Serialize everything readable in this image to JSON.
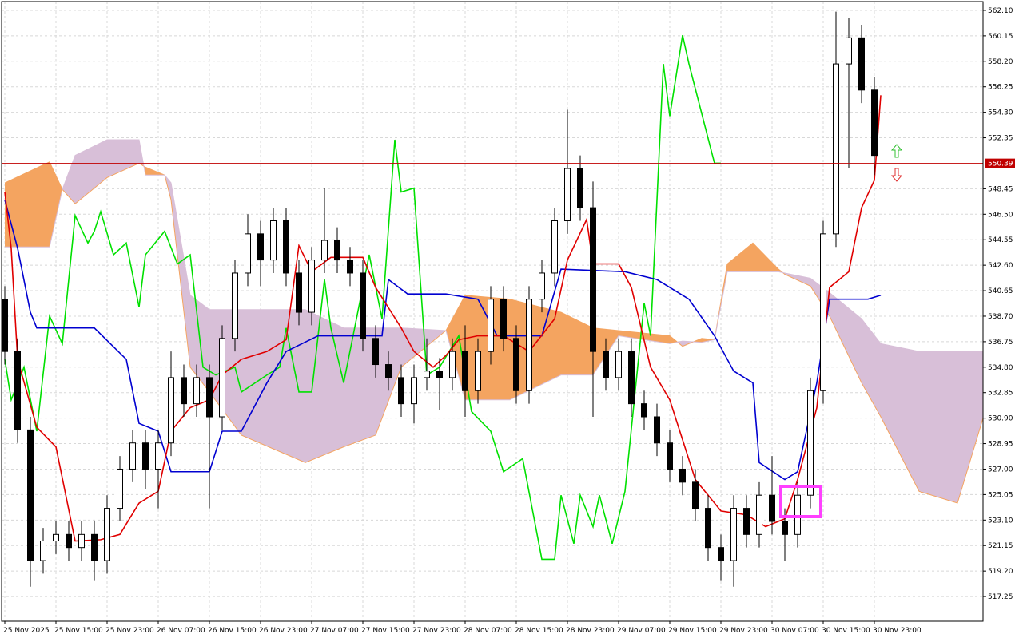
{
  "chart_data": {
    "type": "candlestick",
    "x": [
      0,
      2,
      4,
      6,
      8,
      10,
      12,
      14,
      16,
      18,
      20,
      22,
      24,
      26,
      28,
      30,
      32,
      34,
      36,
      38,
      40,
      42,
      44,
      46,
      48,
      50,
      52,
      54,
      56,
      58,
      60,
      62,
      64,
      66,
      68,
      70,
      72,
      74,
      76,
      78,
      80,
      82,
      84,
      86,
      88,
      90,
      92,
      94,
      96,
      98,
      100,
      102,
      104,
      106,
      108,
      110,
      112,
      114,
      116,
      118,
      120,
      122,
      124,
      126,
      128,
      130,
      132,
      134,
      136
    ],
    "open": [
      540,
      536,
      530,
      520,
      521.5,
      522,
      521,
      522,
      520,
      524,
      527,
      529,
      527,
      529,
      534,
      532,
      534,
      531,
      537,
      542,
      545,
      543,
      546,
      542,
      539,
      543,
      544.5,
      543,
      542,
      537,
      535,
      534,
      532,
      534,
      534.5,
      534,
      536,
      533,
      536,
      540,
      537,
      533,
      540,
      542,
      546,
      550,
      547,
      536,
      534,
      536,
      532,
      531,
      529,
      527,
      526,
      524,
      521,
      520,
      524,
      522,
      525,
      523,
      522,
      525,
      533,
      545,
      558,
      560,
      556
    ],
    "high": [
      541,
      537,
      531,
      522.5,
      523,
      523,
      523,
      523,
      525,
      528,
      530,
      530,
      530,
      536,
      535,
      535,
      535,
      538,
      543,
      546.5,
      546,
      547,
      547,
      543,
      544,
      548.5,
      545.5,
      544,
      543,
      538,
      536,
      535,
      535,
      537,
      535.5,
      537,
      538,
      537,
      541,
      541,
      538,
      541,
      543,
      547,
      554.5,
      551,
      549,
      537,
      537,
      537,
      533,
      532,
      530,
      528,
      527,
      525,
      522,
      525,
      525,
      526,
      528,
      524,
      526,
      534,
      546,
      562,
      561.5,
      561,
      557
    ],
    "low": [
      535,
      529,
      518,
      519,
      520.5,
      520,
      520,
      518.5,
      519,
      523,
      526,
      525.5,
      524,
      528,
      531,
      531,
      524,
      530,
      536,
      541,
      541,
      542,
      541,
      538,
      538,
      542,
      542,
      541,
      536,
      534,
      533,
      531,
      530.5,
      533,
      531.5,
      533,
      531,
      532,
      535,
      536,
      532,
      532,
      539,
      541,
      545,
      546,
      531,
      533,
      533,
      531,
      530,
      528,
      526,
      525,
      523,
      520,
      518.5,
      518,
      521,
      521,
      522,
      520,
      521,
      524,
      532,
      544,
      550,
      555,
      549.5
    ],
    "close": [
      536,
      530,
      520,
      521.5,
      522,
      521,
      522,
      520,
      524,
      527,
      529,
      527,
      529,
      534,
      532,
      534,
      531,
      537,
      542,
      545,
      543,
      546,
      542,
      539,
      543,
      544.5,
      543,
      542,
      537,
      535,
      534,
      532,
      534,
      534.5,
      534,
      536,
      533,
      536,
      540,
      537,
      533,
      540,
      542,
      546,
      550,
      547,
      536,
      534,
      536,
      532,
      531,
      529,
      527,
      526,
      524,
      521,
      520,
      524,
      522,
      525,
      523,
      522,
      525,
      533,
      545,
      558,
      560,
      556,
      551
    ],
    "up_color": "#ffffff",
    "down_color": "#000000",
    "xlim": [
      -0.5,
      153
    ],
    "ylim": [
      515.36,
      562.77
    ],
    "grid": true,
    "xticks": [
      {
        "value": 0,
        "label": "25 Nov 2025"
      },
      {
        "value": 8,
        "label": "25 Nov 15:00"
      },
      {
        "value": 16,
        "label": "25 Nov 23:00"
      },
      {
        "value": 24,
        "label": "26 Nov 07:00"
      },
      {
        "value": 32,
        "label": "26 Nov 15:00"
      },
      {
        "value": 40,
        "label": "26 Nov 23:00"
      },
      {
        "value": 48,
        "label": "27 Nov 07:00"
      },
      {
        "value": 56,
        "label": "27 Nov 15:00"
      },
      {
        "value": 64,
        "label": "27 Nov 23:00"
      },
      {
        "value": 72,
        "label": "28 Nov 07:00"
      },
      {
        "value": 80,
        "label": "28 Nov 15:00"
      },
      {
        "value": 88,
        "label": "28 Nov 23:00"
      },
      {
        "value": 96,
        "label": "29 Nov 07:00"
      },
      {
        "value": 104,
        "label": "29 Nov 15:00"
      },
      {
        "value": 112,
        "label": "29 Nov 23:00"
      },
      {
        "value": 120,
        "label": "30 Nov 07:00"
      },
      {
        "value": 128,
        "label": "30 Nov 15:00"
      },
      {
        "value": 136,
        "label": "30 Nov 23:00"
      }
    ],
    "yticks": [
      {
        "value": 562.1,
        "label": "562.10"
      },
      560.15,
      {
        "value": 558.2,
        "label": "558.20"
      },
      556.25,
      {
        "value": 554.3,
        "label": "554.30"
      },
      552.35,
      548.45,
      {
        "value": 546.5,
        "label": "546.50"
      },
      544.55,
      {
        "value": 542.6,
        "label": "542.60"
      },
      540.65,
      {
        "value": 538.7,
        "label": "538.70"
      },
      536.75,
      {
        "value": 534.8,
        "label": "534.80"
      },
      532.85,
      {
        "value": 530.9,
        "label": "530.90"
      },
      528.95,
      {
        "value": 527,
        "label": "527.00"
      },
      525.05,
      {
        "value": 523.1,
        "label": "523.10"
      },
      521.15,
      {
        "value": 519.2,
        "label": "519.20"
      },
      517.25
    ],
    "price_line": 550.39,
    "price_color": "#c00000",
    "cloud": {
      "x": [
        0,
        7,
        9,
        11,
        16,
        21,
        22,
        25,
        26,
        29,
        32,
        37,
        47,
        53,
        58,
        62,
        69,
        72,
        79,
        87,
        92,
        96,
        104,
        106,
        109,
        111,
        113,
        117,
        121,
        122,
        126,
        129,
        134,
        137,
        143,
        149,
        153
      ],
      "span_a": [
        548.9,
        550.5,
        548.4,
        547.3,
        549.3,
        550.4,
        550.1,
        549.5,
        547.6,
        534.8,
        532.9,
        529.6,
        527.5,
        528.7,
        529.6,
        534.8,
        537.6,
        540.3,
        540,
        539,
        537.8,
        537.6,
        537.2,
        536.4,
        537,
        536.9,
        542.7,
        544.3,
        542.3,
        541.9,
        541,
        538.7,
        533.6,
        531,
        525.3,
        524.4,
        530.9
      ],
      "span_b": [
        544,
        544,
        548.4,
        551,
        552.2,
        552.2,
        549.5,
        549.5,
        548.9,
        540.3,
        539.2,
        539.2,
        539.2,
        537.8,
        537.8,
        537.8,
        537.6,
        532.3,
        532.3,
        534.2,
        534.2,
        537.2,
        536.6,
        536.8,
        536.7,
        536.9,
        542.1,
        542.1,
        542.1,
        542,
        541.6,
        540.5,
        538.5,
        536.6,
        536,
        536,
        536
      ],
      "up_color": "#f4a460",
      "down_color": "#d8bfd8"
    },
    "lines": [
      {
        "color": "#00e000",
        "x": [
          0,
          1,
          3,
          5,
          7,
          9,
          11,
          13,
          14,
          15,
          17,
          19,
          21,
          22,
          25,
          27,
          29,
          31,
          33,
          36,
          37,
          41,
          43,
          44,
          46,
          48,
          50,
          51,
          53,
          55,
          57,
          59,
          61,
          62,
          64,
          66,
          68,
          71,
          73,
          76,
          78,
          81,
          84,
          86,
          87,
          89,
          90,
          92,
          93,
          95,
          97,
          100,
          101,
          103,
          104,
          106,
          107,
          111,
          112
        ],
        "values": [
          535.4,
          532.3,
          534.8,
          529.9,
          538.7,
          536.6,
          546.4,
          544.3,
          545.2,
          546.7,
          543.4,
          544.3,
          539.4,
          543.4,
          545.2,
          542.7,
          543.4,
          534.8,
          534.2,
          534.8,
          532.9,
          534.2,
          534.8,
          537.8,
          532.9,
          532.9,
          541.5,
          537.8,
          533.6,
          538.5,
          543.4,
          538.5,
          552.2,
          548.2,
          548.5,
          534.2,
          534.8,
          537.2,
          531.4,
          529.9,
          526.8,
          527.8,
          520.1,
          520.1,
          525,
          521.3,
          525,
          522.6,
          525,
          521.3,
          525.3,
          539.7,
          537.2,
          558,
          554,
          560.2,
          558,
          550.4,
          550.4
        ]
      },
      {
        "color": "#0000d0",
        "x": [
          0,
          2,
          4,
          5,
          14,
          19,
          21,
          24,
          26,
          32,
          34,
          37,
          41,
          44,
          49,
          54,
          59,
          60,
          63,
          69,
          74,
          77,
          84,
          87,
          97,
          102,
          107,
          111,
          114,
          117,
          118,
          122,
          124,
          127,
          129,
          135,
          137
        ],
        "values": [
          547.6,
          543.9,
          539,
          537.8,
          537.8,
          535.4,
          530.5,
          529.9,
          526.8,
          526.8,
          529.9,
          529.9,
          533.6,
          536,
          537.2,
          537.2,
          537.2,
          541.5,
          540.4,
          540.4,
          540,
          537.2,
          537.2,
          542.3,
          542.1,
          541.5,
          540,
          537.2,
          534.5,
          533.6,
          527.5,
          526.2,
          526.8,
          533.6,
          540,
          540,
          540.3
        ]
      },
      {
        "color": "#e00000",
        "x": [
          0,
          1,
          2,
          5,
          8,
          11,
          15,
          18,
          21,
          24,
          26,
          29,
          32,
          34,
          37,
          41,
          44,
          46,
          48,
          51,
          56,
          58,
          62,
          64,
          67,
          69,
          71,
          74,
          78,
          82,
          86,
          88,
          91,
          92,
          96,
          98,
          101,
          104,
          108,
          112,
          116,
          119,
          122,
          124,
          127,
          129,
          132,
          134,
          136,
          137
        ],
        "values": [
          548.2,
          543.9,
          535.4,
          530.2,
          528.7,
          521.5,
          521.6,
          522,
          524.4,
          525.3,
          529.9,
          531.7,
          532.3,
          534.2,
          535.4,
          536,
          536.9,
          544.1,
          542.1,
          543.2,
          543.2,
          540.9,
          537.8,
          536,
          534.8,
          535.7,
          536.9,
          537.2,
          537.2,
          536,
          538.5,
          543,
          546.1,
          542.7,
          542.7,
          540.9,
          534.8,
          532.3,
          526.2,
          523.8,
          523.5,
          522.6,
          523.2,
          526.2,
          531.7,
          540.9,
          542.1,
          547,
          549.1,
          555.6
        ]
      }
    ]
  }
}
